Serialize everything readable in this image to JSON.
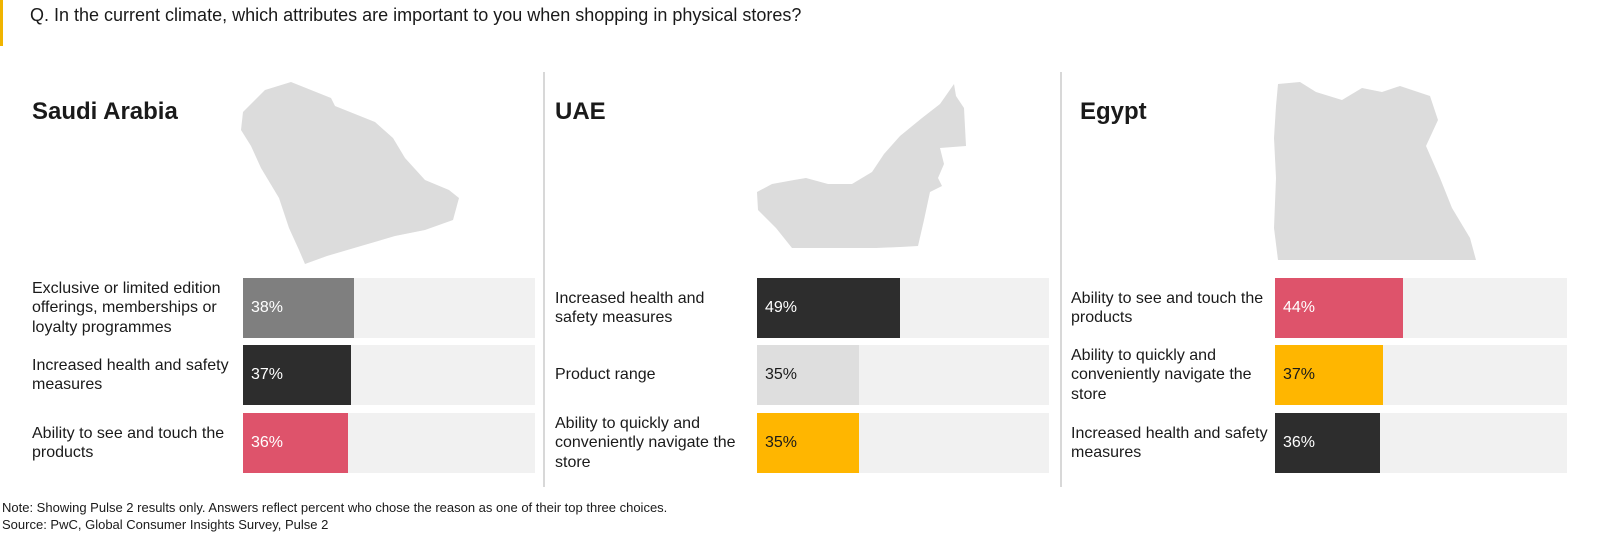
{
  "question": "Q. In the current climate, which attributes are important to you when shopping in physical stores?",
  "colors": {
    "accent": "#f0b400",
    "map_fill": "#dcdcdc",
    "track": "#f1f1f1"
  },
  "chart_data": [
    {
      "type": "bar",
      "orientation": "horizontal",
      "title": "Saudi Arabia",
      "xlim": [
        0,
        100
      ],
      "categories": [
        "Exclusive or limited edition offerings, memberships or loyalty programmes",
        "Increased health and safety measures",
        "Ability to see and touch the products"
      ],
      "values": [
        38,
        37,
        36
      ],
      "value_labels": [
        "38%",
        "37%",
        "36%"
      ],
      "bar_colors": [
        "#7f7f7f",
        "#2d2d2d",
        "#de536b"
      ],
      "label_colors": [
        "#ffffff",
        "#ffffff",
        "#ffffff"
      ]
    },
    {
      "type": "bar",
      "orientation": "horizontal",
      "title": "UAE",
      "xlim": [
        0,
        100
      ],
      "categories": [
        "Increased health and safety measures",
        "Product range",
        "Ability to quickly and conveniently navigate the store"
      ],
      "values": [
        49,
        35,
        35
      ],
      "value_labels": [
        "49%",
        "35%",
        "35%"
      ],
      "bar_colors": [
        "#2d2d2d",
        "#dedede",
        "#ffb600"
      ],
      "label_colors": [
        "#ffffff",
        "#1a1a1a",
        "#1a1a1a"
      ]
    },
    {
      "type": "bar",
      "orientation": "horizontal",
      "title": "Egypt",
      "xlim": [
        0,
        100
      ],
      "categories": [
        "Ability to see and touch the products",
        "Ability to quickly and conveniently navigate the store",
        "Increased health and safety measures"
      ],
      "values": [
        44,
        37,
        36
      ],
      "value_labels": [
        "44%",
        "37%",
        "36%"
      ],
      "bar_colors": [
        "#de536b",
        "#ffb600",
        "#2d2d2d"
      ],
      "label_colors": [
        "#ffffff",
        "#1a1a1a",
        "#ffffff"
      ]
    }
  ],
  "notes": {
    "note": "Note: Showing Pulse 2 results only. Answers reflect percent who chose the reason as one of their top three choices.",
    "source": "Source: PwC, Global Consumer Insights Survey, Pulse 2"
  }
}
